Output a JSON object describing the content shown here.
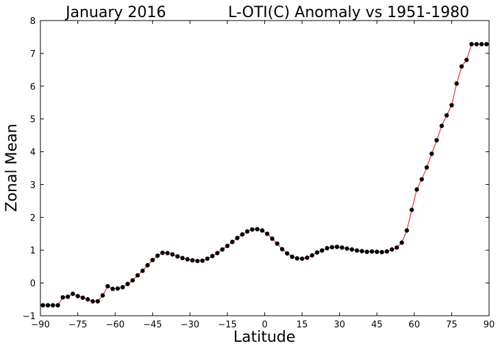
{
  "chart_data": {
    "type": "line",
    "title_left": "January 2016",
    "title_right": "L-OTI(C) Anomaly vs 1951-1980",
    "xlabel": "Latitude",
    "ylabel": "Zonal Mean",
    "xlim": [
      -90,
      90
    ],
    "ylim": [
      -1,
      8
    ],
    "xticks": [
      -90,
      -75,
      -60,
      -45,
      -30,
      -15,
      0,
      15,
      30,
      45,
      60,
      75,
      90
    ],
    "xtick_labels": [
      "−90",
      "−75",
      "−60",
      "−45",
      "−30",
      "−15",
      "0",
      "15",
      "30",
      "45",
      "60",
      "75",
      "90"
    ],
    "yticks": [
      -1,
      0,
      1,
      2,
      3,
      4,
      5,
      6,
      7,
      8
    ],
    "ytick_labels": [
      "−1",
      "0",
      "1",
      "2",
      "3",
      "4",
      "5",
      "6",
      "7",
      "8"
    ],
    "grid": false,
    "line_color": "#ff0000",
    "marker_color": "#000000",
    "x": [
      -89,
      -87,
      -85,
      -83,
      -81,
      -79,
      -77,
      -75,
      -73,
      -71,
      -69,
      -67,
      -65,
      -63,
      -61,
      -59,
      -57,
      -55,
      -53,
      -51,
      -49,
      -47,
      -45,
      -43,
      -41,
      -39,
      -37,
      -35,
      -33,
      -31,
      -29,
      -27,
      -25,
      -23,
      -21,
      -19,
      -17,
      -15,
      -13,
      -11,
      -9,
      -7,
      -5,
      -3,
      -1,
      1,
      3,
      5,
      7,
      9,
      11,
      13,
      15,
      17,
      19,
      21,
      23,
      25,
      27,
      29,
      31,
      33,
      35,
      37,
      39,
      41,
      43,
      45,
      47,
      49,
      51,
      53,
      55,
      57,
      59,
      61,
      63,
      65,
      67,
      69,
      71,
      73,
      75,
      77,
      79,
      81,
      83,
      85,
      87,
      89
    ],
    "y": [
      -0.68,
      -0.68,
      -0.68,
      -0.68,
      -0.44,
      -0.42,
      -0.33,
      -0.4,
      -0.45,
      -0.5,
      -0.56,
      -0.56,
      -0.38,
      -0.1,
      -0.18,
      -0.17,
      -0.13,
      -0.03,
      0.08,
      0.23,
      0.37,
      0.54,
      0.7,
      0.83,
      0.92,
      0.91,
      0.87,
      0.81,
      0.76,
      0.72,
      0.69,
      0.67,
      0.68,
      0.74,
      0.82,
      0.91,
      1.02,
      1.13,
      1.25,
      1.37,
      1.48,
      1.57,
      1.63,
      1.64,
      1.6,
      1.5,
      1.35,
      1.2,
      1.03,
      0.9,
      0.8,
      0.75,
      0.74,
      0.77,
      0.84,
      0.93,
      0.99,
      1.06,
      1.09,
      1.1,
      1.08,
      1.05,
      1.02,
      0.99,
      0.97,
      0.95,
      0.96,
      0.95,
      0.94,
      0.96,
      1.02,
      1.08,
      1.23,
      1.6,
      2.23,
      2.85,
      3.16,
      3.52,
      3.94,
      4.35,
      4.79,
      5.11,
      5.42,
      6.08,
      6.6,
      6.8,
      7.28,
      7.28,
      7.28,
      7.28
    ]
  }
}
